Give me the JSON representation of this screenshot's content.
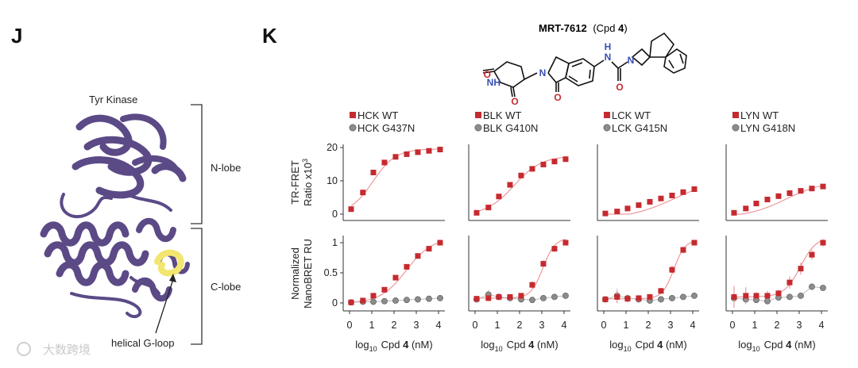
{
  "panels": {
    "j_letter": "J",
    "k_letter": "K"
  },
  "structure": {
    "protein_label": "Tyr Kinase",
    "n_lobe_label": "N-lobe",
    "c_lobe_label": "C-lobe",
    "gloop_label": "helical G-loop",
    "protein_color": "#5b4a86",
    "gloop_color": "#f2e66f"
  },
  "compound": {
    "name": "MRT-7612",
    "cpd_prefix": "(Cpd ",
    "cpd_number": "4",
    "cpd_suffix": ")",
    "atoms": {
      "nh1": "NH",
      "o": "O",
      "n": "N",
      "h": "H"
    }
  },
  "axes": {
    "x_label_prefix": "log",
    "x_label_sub": "10",
    "x_label_cpd": "Cpd ",
    "x_label_num": "4",
    "x_label_unit": " (nM)",
    "x_ticks": [
      "0",
      "1",
      "2",
      "3",
      "4"
    ],
    "top_y_label_line1": "TR-FRET",
    "top_y_label_line2": "Ratio x10",
    "top_y_label_sup": "3",
    "top_y_ticks": [
      "0",
      "10",
      "20"
    ],
    "bottom_y_label_line1": "Normalized",
    "bottom_y_label_line2": "NanoBRET RU",
    "bottom_y_ticks": [
      "0",
      "0.5",
      "1"
    ]
  },
  "colors": {
    "wt": "#c62a2f",
    "wt_line": "#e9868a",
    "mutant": "#8c8c8c",
    "mutant_line": "#bdbdbd"
  },
  "chart_data": [
    {
      "type": "scatter",
      "kinase": "HCK",
      "legend": [
        "HCK WT",
        "HCK G437N"
      ],
      "x": [
        0.07,
        0.6,
        1.07,
        1.57,
        2.07,
        2.57,
        3.07,
        3.57,
        4.07
      ],
      "trfret_wt": [
        1.5,
        6.5,
        12.5,
        15.5,
        17.2,
        18.0,
        18.6,
        19.0,
        19.4
      ],
      "nanobret_wt": [
        0.01,
        0.04,
        0.12,
        0.22,
        0.42,
        0.6,
        0.78,
        0.9,
        1.0
      ],
      "nanobret_wt_err": [
        0.01,
        0.01,
        0.01,
        0.02,
        0.02,
        0.02,
        0.02,
        0.02,
        0.02
      ],
      "nanobret_mutant": [
        0.01,
        0.02,
        0.02,
        0.03,
        0.04,
        0.05,
        0.06,
        0.07,
        0.08
      ],
      "nanobret_mutant_err": [
        0.01,
        0.01,
        0.01,
        0.01,
        0.01,
        0.01,
        0.01,
        0.01,
        0.01
      ]
    },
    {
      "type": "scatter",
      "kinase": "BLK",
      "legend": [
        "BLK WT",
        "BLK G410N"
      ],
      "x": [
        0.07,
        0.6,
        1.07,
        1.57,
        2.07,
        2.57,
        3.07,
        3.57,
        4.07
      ],
      "trfret_wt": [
        0.4,
        2.0,
        5.3,
        8.8,
        11.6,
        13.6,
        14.9,
        15.8,
        16.5
      ],
      "nanobret_wt": [
        0.07,
        0.08,
        0.1,
        0.1,
        0.12,
        0.3,
        0.65,
        0.9,
        1.0
      ],
      "nanobret_wt_err": [
        0.04,
        0.05,
        0.04,
        0.04,
        0.04,
        0.06,
        0.06,
        0.05,
        0.03
      ],
      "nanobret_mutant": [
        0.06,
        0.14,
        0.1,
        0.08,
        0.06,
        0.05,
        0.08,
        0.1,
        0.12
      ],
      "nanobret_mutant_err": [
        0.03,
        0.08,
        0.06,
        0.05,
        0.04,
        0.04,
        0.04,
        0.04,
        0.03
      ]
    },
    {
      "type": "scatter",
      "kinase": "LCK",
      "legend": [
        "LCK WT",
        "LCK G415N"
      ],
      "x": [
        0.07,
        0.6,
        1.07,
        1.57,
        2.07,
        2.57,
        3.07,
        3.57,
        4.07
      ],
      "trfret_wt": [
        0.2,
        0.8,
        1.7,
        2.7,
        3.7,
        4.7,
        5.6,
        6.6,
        7.5
      ],
      "nanobret_wt": [
        0.06,
        0.1,
        0.07,
        0.08,
        0.1,
        0.2,
        0.55,
        0.88,
        1.0
      ],
      "nanobret_wt_err": [
        0.05,
        0.1,
        0.06,
        0.04,
        0.05,
        0.05,
        0.07,
        0.06,
        0.04
      ],
      "nanobret_mutant": [
        0.06,
        0.12,
        0.08,
        0.06,
        0.04,
        0.06,
        0.08,
        0.1,
        0.12
      ],
      "nanobret_mutant_err": [
        0.04,
        0.12,
        0.06,
        0.04,
        0.04,
        0.05,
        0.05,
        0.04,
        0.03
      ]
    },
    {
      "type": "scatter",
      "kinase": "LYN",
      "legend": [
        "LYN WT",
        "LYN G418N"
      ],
      "x": [
        0.07,
        0.6,
        1.07,
        1.57,
        2.07,
        2.57,
        3.07,
        3.57,
        4.07
      ],
      "trfret_wt": [
        0.4,
        1.7,
        3.2,
        4.4,
        5.4,
        6.3,
        7.0,
        7.7,
        8.3
      ],
      "nanobret_wt": [
        0.1,
        0.12,
        0.12,
        0.12,
        0.16,
        0.34,
        0.57,
        0.8,
        1.0
      ],
      "nanobret_wt_err": [
        0.18,
        0.14,
        0.06,
        0.08,
        0.06,
        0.1,
        0.1,
        0.08,
        0.06
      ],
      "nanobret_mutant": [
        0.08,
        0.06,
        0.05,
        0.03,
        0.09,
        0.1,
        0.12,
        0.27,
        0.25
      ],
      "nanobret_mutant_err": [
        0.06,
        0.04,
        0.05,
        0.05,
        0.04,
        0.05,
        0.05,
        0.06,
        0.04
      ]
    }
  ],
  "watermark": "大数跨境"
}
